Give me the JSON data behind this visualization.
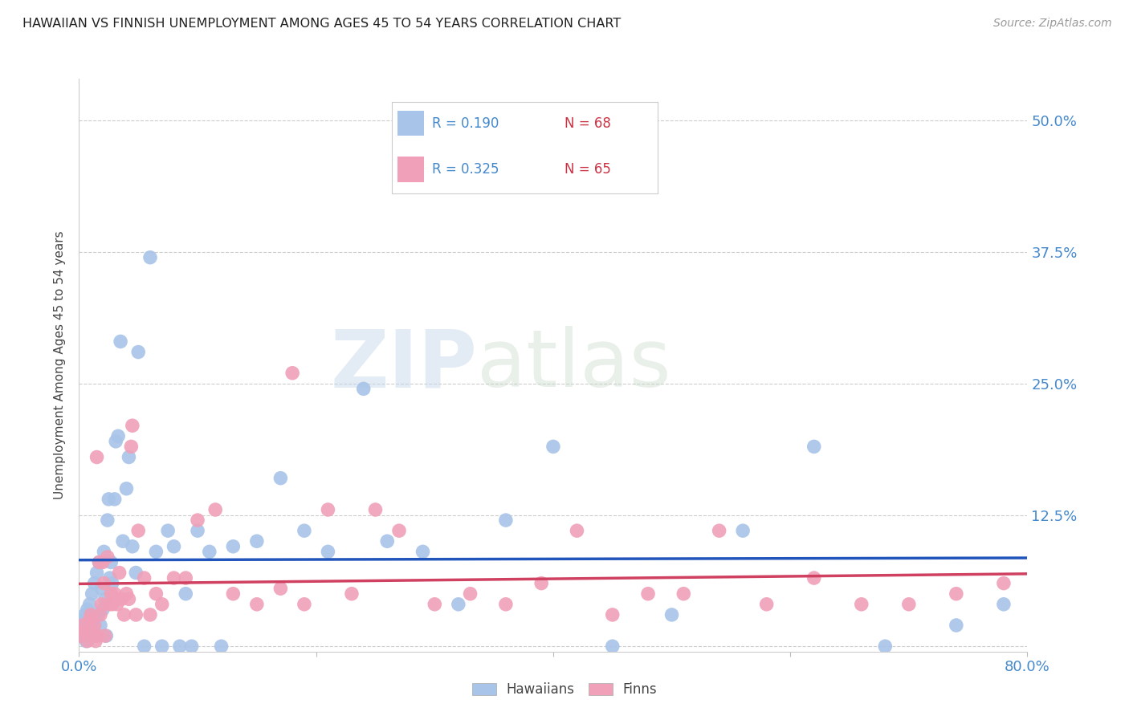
{
  "title": "HAWAIIAN VS FINNISH UNEMPLOYMENT AMONG AGES 45 TO 54 YEARS CORRELATION CHART",
  "source": "Source: ZipAtlas.com",
  "ylabel": "Unemployment Among Ages 45 to 54 years",
  "xlim": [
    0.0,
    0.8
  ],
  "ylim": [
    -0.005,
    0.54
  ],
  "yticks": [
    0.0,
    0.125,
    0.25,
    0.375,
    0.5
  ],
  "ytick_labels": [
    "",
    "12.5%",
    "25.0%",
    "37.5%",
    "50.0%"
  ],
  "hawaiian_color": "#a8c4e8",
  "finn_color": "#f0a0b8",
  "hawaiian_line_color": "#2255bb",
  "finn_line_color": "#d04060",
  "watermark_zip": "ZIP",
  "watermark_atlas": "atlas",
  "background_color": "#ffffff",
  "hawaiians_x": [
    0.001,
    0.002,
    0.003,
    0.004,
    0.005,
    0.006,
    0.007,
    0.008,
    0.009,
    0.01,
    0.011,
    0.012,
    0.013,
    0.014,
    0.015,
    0.016,
    0.017,
    0.018,
    0.019,
    0.02,
    0.021,
    0.022,
    0.023,
    0.024,
    0.025,
    0.026,
    0.027,
    0.028,
    0.03,
    0.031,
    0.033,
    0.035,
    0.037,
    0.04,
    0.042,
    0.045,
    0.048,
    0.05,
    0.055,
    0.06,
    0.065,
    0.07,
    0.075,
    0.08,
    0.085,
    0.09,
    0.095,
    0.1,
    0.11,
    0.12,
    0.13,
    0.15,
    0.17,
    0.19,
    0.21,
    0.24,
    0.26,
    0.29,
    0.32,
    0.36,
    0.4,
    0.45,
    0.5,
    0.56,
    0.62,
    0.68,
    0.74,
    0.78
  ],
  "hawaiians_y": [
    0.02,
    0.015,
    0.025,
    0.01,
    0.03,
    0.005,
    0.035,
    0.02,
    0.04,
    0.015,
    0.05,
    0.025,
    0.06,
    0.01,
    0.07,
    0.03,
    0.08,
    0.02,
    0.055,
    0.035,
    0.09,
    0.045,
    0.01,
    0.12,
    0.14,
    0.065,
    0.08,
    0.06,
    0.14,
    0.195,
    0.2,
    0.29,
    0.1,
    0.15,
    0.18,
    0.095,
    0.07,
    0.28,
    0.0,
    0.37,
    0.09,
    0.0,
    0.11,
    0.095,
    0.0,
    0.05,
    0.0,
    0.11,
    0.09,
    0.0,
    0.095,
    0.1,
    0.16,
    0.11,
    0.09,
    0.245,
    0.1,
    0.09,
    0.04,
    0.12,
    0.19,
    0.0,
    0.03,
    0.11,
    0.19,
    0.0,
    0.02,
    0.04
  ],
  "finns_x": [
    0.001,
    0.003,
    0.005,
    0.007,
    0.009,
    0.01,
    0.011,
    0.012,
    0.013,
    0.014,
    0.015,
    0.016,
    0.017,
    0.018,
    0.019,
    0.02,
    0.021,
    0.022,
    0.024,
    0.025,
    0.027,
    0.028,
    0.03,
    0.032,
    0.034,
    0.036,
    0.038,
    0.04,
    0.042,
    0.045,
    0.048,
    0.05,
    0.055,
    0.06,
    0.065,
    0.07,
    0.08,
    0.09,
    0.1,
    0.115,
    0.13,
    0.15,
    0.17,
    0.19,
    0.21,
    0.23,
    0.25,
    0.27,
    0.3,
    0.33,
    0.36,
    0.39,
    0.42,
    0.45,
    0.48,
    0.51,
    0.54,
    0.58,
    0.62,
    0.66,
    0.7,
    0.74,
    0.78,
    0.18,
    0.044
  ],
  "finns_y": [
    0.01,
    0.02,
    0.015,
    0.005,
    0.025,
    0.03,
    0.015,
    0.01,
    0.02,
    0.005,
    0.18,
    0.01,
    0.08,
    0.03,
    0.04,
    0.08,
    0.06,
    0.01,
    0.085,
    0.04,
    0.05,
    0.04,
    0.05,
    0.04,
    0.07,
    0.045,
    0.03,
    0.05,
    0.045,
    0.21,
    0.03,
    0.11,
    0.065,
    0.03,
    0.05,
    0.04,
    0.065,
    0.065,
    0.12,
    0.13,
    0.05,
    0.04,
    0.055,
    0.04,
    0.13,
    0.05,
    0.13,
    0.11,
    0.04,
    0.05,
    0.04,
    0.06,
    0.11,
    0.03,
    0.05,
    0.05,
    0.11,
    0.04,
    0.065,
    0.04,
    0.04,
    0.05,
    0.06,
    0.26,
    0.19
  ]
}
